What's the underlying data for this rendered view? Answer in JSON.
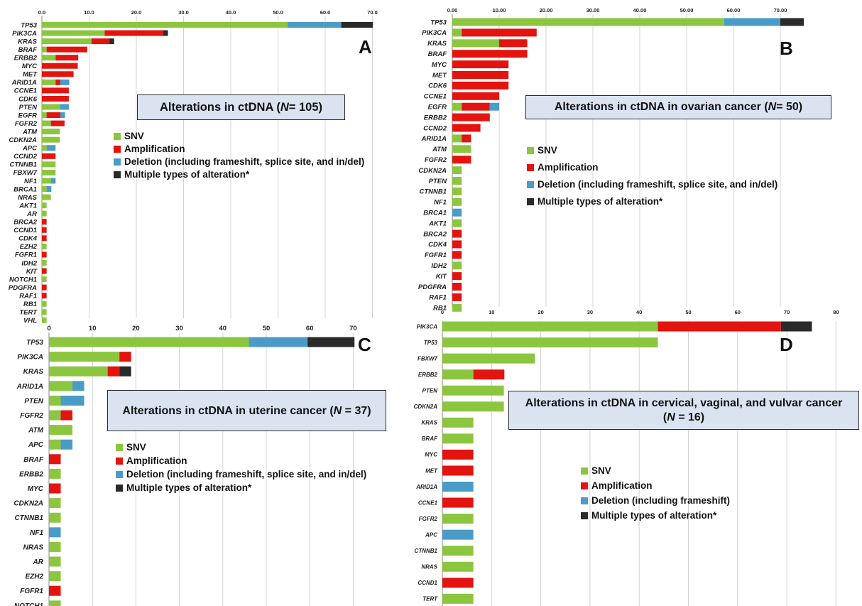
{
  "colors": {
    "snv": "#8cc63f",
    "amp": "#e3140f",
    "del": "#4a9cc7",
    "multi": "#2a2a2a",
    "grid": "#d4d4d4"
  },
  "chart_data": [
    {
      "id": "A",
      "type": "bar",
      "orientation": "horizontal",
      "stacked": true,
      "letter": "A",
      "title_parts": {
        "pre": "Alterations in ctDNA (",
        "n": "N",
        "post": " = 105)"
      },
      "xticks": [
        "0.0",
        "10.0",
        "20.0",
        "30.0",
        "40.0",
        "50.0",
        "60.0",
        "70.0"
      ],
      "xlim": [
        0,
        70
      ],
      "legend": [
        "SNV",
        "Amplification",
        "Deletion (including frameshift, splice site, and in/del)",
        "Multiple types of alteration*"
      ],
      "categories": [
        "TP53",
        "PIK3CA",
        "KRAS",
        "BRAF",
        "ERBB2",
        "MYC",
        "MET",
        "ARID1A",
        "CCNE1",
        "CDK6",
        "PTEN",
        "EGFR",
        "FGFR2",
        "ATM",
        "CDKN2A",
        "APC",
        "CCND2",
        "CTNNB1",
        "FBXW7",
        "NF1",
        "BRCA1",
        "NRAS",
        "AKT1",
        "AR",
        "BRCA2",
        "CCND1",
        "CDK4",
        "EZH2",
        "FGFR1",
        "IDH2",
        "KIT",
        "NOTCH1",
        "PDGFRA",
        "RAF1",
        "RB1",
        "TERT",
        "VHL"
      ],
      "series": [
        {
          "name": "SNV",
          "key": "snv",
          "values": [
            52,
            13.3,
            10.5,
            1,
            2.9,
            0,
            0,
            2.9,
            0,
            0,
            3.8,
            1,
            1.9,
            3.8,
            3.8,
            1,
            0,
            2.9,
            2.9,
            1.9,
            1,
            1.9,
            1,
            1,
            0,
            0,
            0,
            1,
            0,
            1,
            0,
            1,
            0,
            0,
            1,
            1,
            1
          ]
        },
        {
          "name": "Amplification",
          "key": "amp",
          "values": [
            0,
            12.4,
            3.8,
            8.6,
            4.8,
            7.6,
            6.7,
            1,
            5.7,
            5.7,
            0,
            2.9,
            2.9,
            0,
            0,
            0,
            2.9,
            0,
            0,
            0,
            0,
            0,
            0,
            0,
            1,
            1,
            1,
            0,
            1,
            0,
            1,
            0,
            1,
            1,
            0,
            0,
            0
          ]
        },
        {
          "name": "Deletion",
          "key": "del",
          "values": [
            11.4,
            0,
            0,
            0,
            0,
            0,
            0,
            1.9,
            0,
            0,
            1.9,
            1,
            0,
            0,
            0,
            1.9,
            0,
            0,
            0,
            1,
            1,
            0,
            0,
            0,
            0,
            0,
            0,
            0,
            0,
            0,
            0,
            0,
            0,
            0,
            0,
            0,
            0
          ]
        },
        {
          "name": "Multiple types of alteration*",
          "key": "multi",
          "values": [
            6.7,
            1,
            1,
            0,
            0,
            0,
            0,
            0,
            0,
            0,
            0,
            0,
            0,
            0,
            0,
            0,
            0,
            0,
            0,
            0,
            0,
            0,
            0,
            0,
            0,
            0,
            0,
            0,
            0,
            0,
            0,
            0,
            0,
            0,
            0,
            0,
            0
          ]
        }
      ]
    },
    {
      "id": "B",
      "type": "bar",
      "orientation": "horizontal",
      "stacked": true,
      "letter": "B",
      "title_parts": {
        "pre": "Alterations in ctDNA in ovarian cancer (",
        "n": "N",
        "post": " = 50)"
      },
      "xticks": [
        "0.00",
        "10.00",
        "20.00",
        "30.00",
        "40.00",
        "50.00",
        "60.00",
        "70.00"
      ],
      "xticks_bottom": [
        "0",
        "10",
        "20",
        "30",
        "40",
        "50",
        "60",
        "70",
        "80"
      ],
      "xlim": [
        0,
        76
      ],
      "legend": [
        "SNV",
        "Amplification",
        "Deletion (including frameshift, splice site, and in/del)",
        "Multiple types of alteration*"
      ],
      "categories": [
        "TP53",
        "PIK3CA",
        "KRAS",
        "BRAF",
        "MYC",
        "MET",
        "CDK6",
        "CCNE1",
        "EGFR",
        "ERBB2",
        "CCND2",
        "ARID1A",
        "ATM",
        "FGFR2",
        "CDKN2A",
        "PTEN",
        "CTNNB1",
        "NF1",
        "BRCA1",
        "AKT1",
        "BRCA2",
        "CDK4",
        "FGFR1",
        "IDH2",
        "KIT",
        "PDGFRA",
        "RAF1",
        "RB1"
      ],
      "series": [
        {
          "name": "SNV",
          "key": "snv",
          "values": [
            58,
            2,
            10,
            0,
            0,
            0,
            0,
            0,
            2,
            0,
            0,
            2,
            4,
            0,
            2,
            2,
            2,
            2,
            0,
            2,
            0,
            0,
            0,
            2,
            0,
            0,
            0,
            2
          ]
        },
        {
          "name": "Amplification",
          "key": "amp",
          "values": [
            0,
            16,
            6,
            16,
            12,
            12,
            12,
            10,
            6,
            8,
            6,
            2,
            0,
            4,
            0,
            0,
            0,
            0,
            0,
            0,
            2,
            2,
            2,
            0,
            2,
            2,
            2,
            0
          ]
        },
        {
          "name": "Deletion",
          "key": "del",
          "values": [
            12,
            0,
            0,
            0,
            0,
            0,
            0,
            0,
            2,
            0,
            0,
            0,
            0,
            0,
            0,
            0,
            0,
            0,
            2,
            0,
            0,
            0,
            0,
            0,
            0,
            0,
            0,
            0
          ]
        },
        {
          "name": "Multiple types of alteration*",
          "key": "multi",
          "values": [
            5,
            0,
            0,
            0,
            0,
            0,
            0,
            0,
            0,
            0,
            0,
            0,
            0,
            0,
            0,
            0,
            0,
            0,
            0,
            0,
            0,
            0,
            0,
            0,
            0,
            0,
            0,
            0
          ]
        }
      ]
    },
    {
      "id": "C",
      "type": "bar",
      "orientation": "horizontal",
      "stacked": true,
      "letter": "C",
      "title_parts": {
        "pre": "Alterations in ctDNA in uterine cancer (",
        "n": "N",
        "post": " =  37)"
      },
      "xticks": [
        "0",
        "10",
        "20",
        "30",
        "40",
        "50",
        "60",
        "70"
      ],
      "xlim": [
        0,
        70
      ],
      "legend": [
        "SNV",
        "Amplification",
        "Deletion (including frameshift, splice site, and in/del)",
        "Multiple types of alteration*"
      ],
      "categories": [
        "TP53",
        "PIK3CA",
        "KRAS",
        "ARID1A",
        "PTEN",
        "FGFR2",
        "ATM",
        "APC",
        "BRAF",
        "ERBB2",
        "MYC",
        "CDKN2A",
        "CTNNB1",
        "NF1",
        "NRAS",
        "AR",
        "EZH2",
        "FGFR1",
        "NOTCH1"
      ],
      "series": [
        {
          "name": "SNV",
          "key": "snv",
          "values": [
            46,
            16.2,
            13.5,
            5.4,
            2.7,
            2.7,
            5.4,
            2.7,
            0,
            2.7,
            0,
            2.7,
            2.7,
            0,
            2.7,
            2.7,
            2.7,
            0,
            2.7
          ]
        },
        {
          "name": "Amplification",
          "key": "amp",
          "values": [
            0,
            2.7,
            2.7,
            0,
            0,
            2.7,
            0,
            0,
            2.7,
            0,
            2.7,
            0,
            0,
            0,
            0,
            0,
            0,
            2.7,
            0
          ]
        },
        {
          "name": "Deletion",
          "key": "del",
          "values": [
            13.5,
            0,
            0,
            2.7,
            5.4,
            0,
            0,
            2.7,
            0,
            0,
            0,
            0,
            0,
            2.7,
            0,
            0,
            0,
            0,
            0
          ]
        },
        {
          "name": "Multiple types of alteration*",
          "key": "multi",
          "values": [
            10.8,
            0,
            2.7,
            0,
            0,
            0,
            0,
            0,
            0,
            0,
            0,
            0,
            0,
            0,
            0,
            0,
            0,
            0,
            0
          ]
        }
      ]
    },
    {
      "id": "D",
      "type": "bar",
      "orientation": "horizontal",
      "stacked": true,
      "letter": "D",
      "title_parts": {
        "pre": "Alterations in ctDNA in cervical, vaginal, and vulvar cancer (",
        "n": "N",
        "post": " = 16)"
      },
      "xlim": [
        0,
        80
      ],
      "legend": [
        "SNV",
        "Amplification",
        "Deletion (including frameshift)",
        "Multiple types of alteration*"
      ],
      "categories": [
        "PIK3CA",
        "TP53",
        "FBXW7",
        "ERBB2",
        "PTEN",
        "CDKN2A",
        "KRAS",
        "BRAF",
        "MYC",
        "MET",
        "ARID1A",
        "CCNE1",
        "FGFR2",
        "APC",
        "CTNNB1",
        "NRAS",
        "CCND1",
        "TERT"
      ],
      "series": [
        {
          "name": "SNV",
          "key": "snv",
          "values": [
            43.8,
            43.8,
            18.8,
            6.3,
            12.5,
            12.5,
            6.3,
            6.3,
            0,
            0,
            0,
            0,
            6.3,
            0,
            6.3,
            6.3,
            0,
            6.3
          ]
        },
        {
          "name": "Amplification",
          "key": "amp",
          "values": [
            25,
            0,
            0,
            6.3,
            0,
            0,
            0,
            0,
            6.3,
            6.3,
            0,
            6.3,
            0,
            0,
            0,
            0,
            6.3,
            0
          ]
        },
        {
          "name": "Deletion",
          "key": "del",
          "values": [
            0,
            0,
            0,
            0,
            0,
            0,
            0,
            0,
            0,
            0,
            6.3,
            0,
            0,
            6.3,
            0,
            0,
            0,
            0
          ]
        },
        {
          "name": "Multiple types of alteration*",
          "key": "multi",
          "values": [
            6.3,
            0,
            0,
            0,
            0,
            0,
            0,
            0,
            0,
            0,
            0,
            0,
            0,
            0,
            0,
            0,
            0,
            0
          ]
        }
      ]
    }
  ]
}
